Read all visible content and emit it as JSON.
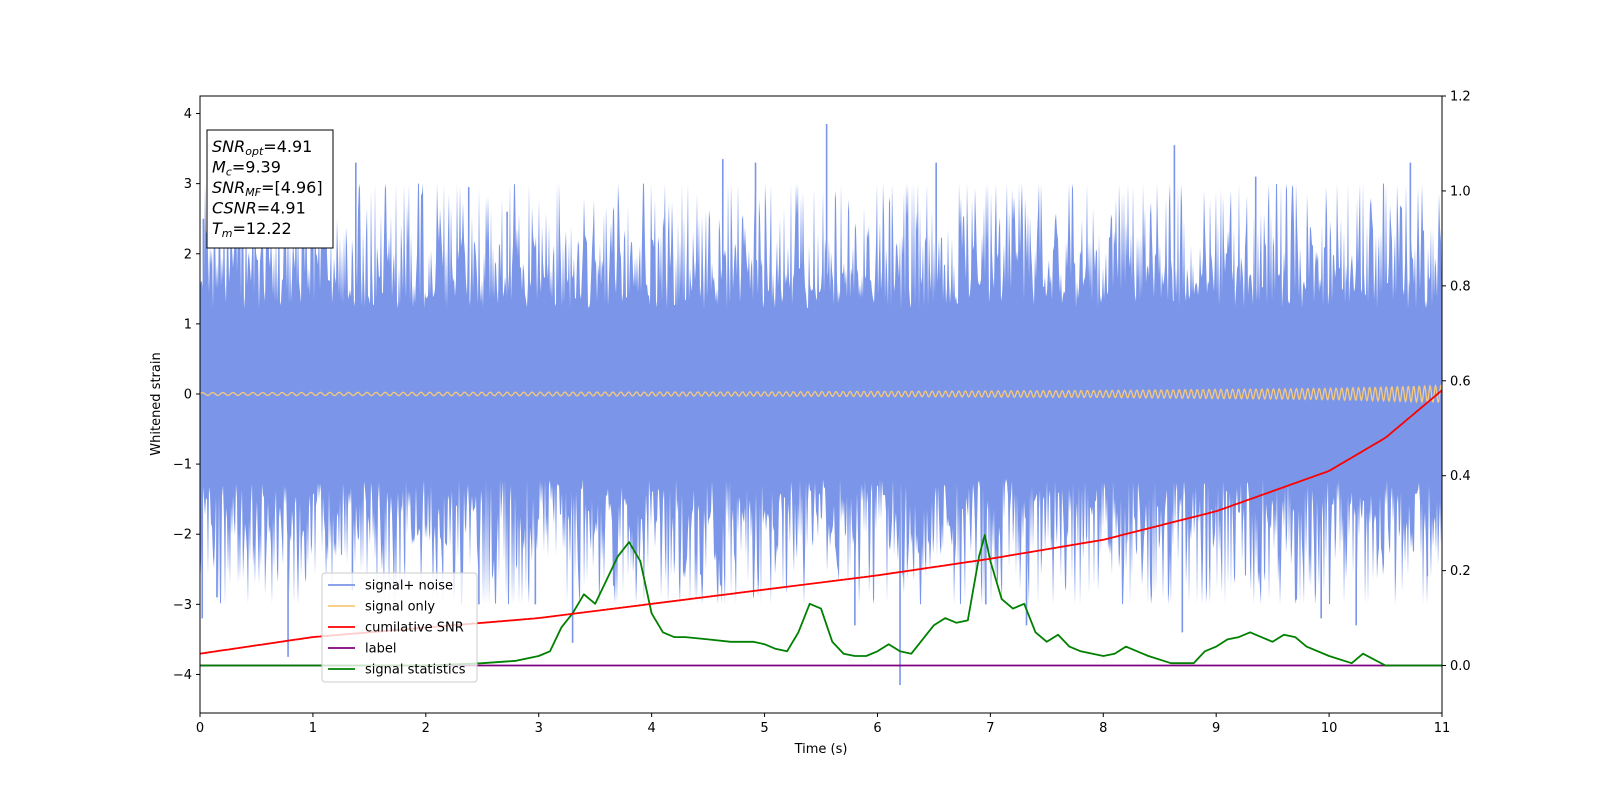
{
  "chart_data": {
    "type": "line",
    "xlabel": "Time (s)",
    "ylabel": "Whitened strain",
    "xlim": [
      0,
      11
    ],
    "ylim": [
      -4.55,
      4.25
    ],
    "y2lim": [
      -0.1,
      1.2
    ],
    "x_ticks": [
      "0",
      "1",
      "2",
      "3",
      "4",
      "5",
      "6",
      "7",
      "8",
      "9",
      "10",
      "11"
    ],
    "y_ticks": [
      "4",
      "3",
      "2",
      "1",
      "0",
      "−1",
      "−2",
      "−3",
      "−4"
    ],
    "y_tick_values": [
      4,
      3,
      2,
      1,
      0,
      -1,
      -2,
      -3,
      -4
    ],
    "y2_ticks": [
      "1.2",
      "1.0",
      "0.8",
      "0.6",
      "0.4",
      "0.2",
      "0.0"
    ],
    "y2_tick_values": [
      1.2,
      1.0,
      0.8,
      0.6,
      0.4,
      0.2,
      0.0
    ],
    "annotation": [
      {
        "main": "SNR",
        "sub": "opt",
        "rest": "=4.91"
      },
      {
        "main": "M",
        "sub": "c",
        "rest": "=9.39"
      },
      {
        "main": "SNR",
        "sub": "MF",
        "rest": "=[4.96]"
      },
      {
        "main": "CSNR",
        "sub": "",
        "rest": "=4.91"
      },
      {
        "main": "T",
        "sub": "m",
        "rest": "=12.22"
      }
    ],
    "legend_position": "lower-left",
    "legend": [
      {
        "label": "signal+ noise",
        "color": "#7b96e9"
      },
      {
        "label": "signal only",
        "color": "#f7c97a"
      },
      {
        "label": "cumilative SNR",
        "color": "#ff0000"
      },
      {
        "label": "label",
        "color": "#800080"
      },
      {
        "label": "signal statistics",
        "color": "#008000"
      }
    ],
    "series": [
      {
        "name": "signal+ noise",
        "axis": "left",
        "color": "#7b96e9",
        "style": "noise band, approx. range -4.1 to 3.85",
        "spikes": [
          {
            "x": 0.03,
            "y": 2.5
          },
          {
            "x": 0.02,
            "y": -3.2
          },
          {
            "x": 0.15,
            "y": -2.9
          },
          {
            "x": 0.78,
            "y": -3.75
          },
          {
            "x": 1.38,
            "y": 3.3
          },
          {
            "x": 1.35,
            "y": -2.8
          },
          {
            "x": 2.38,
            "y": 2.95
          },
          {
            "x": 2.47,
            "y": -3.0
          },
          {
            "x": 2.72,
            "y": 2.6
          },
          {
            "x": 2.97,
            "y": -3.0
          },
          {
            "x": 3.3,
            "y": -3.55
          },
          {
            "x": 4.63,
            "y": 3.35
          },
          {
            "x": 4.92,
            "y": 3.3
          },
          {
            "x": 5.55,
            "y": 3.85
          },
          {
            "x": 5.8,
            "y": -3.3
          },
          {
            "x": 6.2,
            "y": -4.15
          },
          {
            "x": 6.52,
            "y": 3.3
          },
          {
            "x": 6.96,
            "y": -3.0
          },
          {
            "x": 7.32,
            "y": -3.3
          },
          {
            "x": 8.63,
            "y": 3.55
          },
          {
            "x": 8.7,
            "y": -3.4
          },
          {
            "x": 9.35,
            "y": 3.1
          },
          {
            "x": 9.93,
            "y": -3.2
          },
          {
            "x": 10.24,
            "y": -3.3
          },
          {
            "x": 10.72,
            "y": 3.3
          },
          {
            "x": 10.87,
            "y": -2.6
          }
        ],
        "amplitude_envelope": {
          "x": [
            0,
            11
          ],
          "low": [
            -2.2,
            -2.2
          ],
          "high": [
            2.2,
            2.2
          ]
        }
      },
      {
        "name": "signal only",
        "axis": "left",
        "color": "#f7c97a",
        "style": "chirp oscillation around 0",
        "amplitude": {
          "x": [
            0,
            5,
            8,
            10,
            11
          ],
          "y": [
            0.02,
            0.03,
            0.05,
            0.08,
            0.12
          ]
        }
      },
      {
        "name": "cumilative SNR",
        "axis": "right",
        "color": "#ff0000",
        "x": [
          0,
          1,
          2,
          3,
          4,
          5,
          6,
          7,
          8,
          9,
          10,
          10.5,
          11
        ],
        "y": [
          0.025,
          0.06,
          0.08,
          0.1,
          0.13,
          0.16,
          0.19,
          0.225,
          0.265,
          0.325,
          0.41,
          0.48,
          0.58
        ]
      },
      {
        "name": "label",
        "axis": "right",
        "color": "#800080",
        "x": [
          0,
          11
        ],
        "y": [
          0,
          0
        ]
      },
      {
        "name": "signal statistics",
        "axis": "right",
        "color": "#008000",
        "x": [
          0,
          1,
          2,
          2.5,
          2.8,
          3.0,
          3.1,
          3.2,
          3.3,
          3.4,
          3.5,
          3.6,
          3.7,
          3.8,
          3.9,
          4.0,
          4.1,
          4.2,
          4.3,
          4.5,
          4.7,
          4.9,
          5.0,
          5.1,
          5.2,
          5.3,
          5.4,
          5.5,
          5.6,
          5.7,
          5.8,
          5.9,
          6.0,
          6.1,
          6.2,
          6.3,
          6.4,
          6.5,
          6.6,
          6.7,
          6.8,
          6.9,
          6.95,
          7.0,
          7.1,
          7.2,
          7.3,
          7.4,
          7.5,
          7.6,
          7.7,
          7.8,
          8.0,
          8.1,
          8.2,
          8.3,
          8.4,
          8.6,
          8.8,
          8.9,
          9.0,
          9.1,
          9.2,
          9.3,
          9.4,
          9.5,
          9.6,
          9.7,
          9.8,
          10.0,
          10.2,
          10.3,
          10.5,
          11
        ],
        "y": [
          0.0,
          0.0,
          0.0,
          0.005,
          0.01,
          0.02,
          0.03,
          0.08,
          0.11,
          0.15,
          0.13,
          0.18,
          0.23,
          0.26,
          0.22,
          0.11,
          0.07,
          0.06,
          0.06,
          0.055,
          0.05,
          0.05,
          0.045,
          0.035,
          0.03,
          0.07,
          0.13,
          0.12,
          0.05,
          0.025,
          0.02,
          0.02,
          0.03,
          0.045,
          0.03,
          0.025,
          0.055,
          0.085,
          0.1,
          0.09,
          0.095,
          0.23,
          0.275,
          0.22,
          0.14,
          0.12,
          0.13,
          0.07,
          0.05,
          0.065,
          0.04,
          0.03,
          0.02,
          0.025,
          0.04,
          0.03,
          0.02,
          0.005,
          0.005,
          0.03,
          0.04,
          0.055,
          0.06,
          0.07,
          0.06,
          0.05,
          0.065,
          0.06,
          0.04,
          0.02,
          0.005,
          0.025,
          0.0,
          0.0
        ]
      }
    ]
  }
}
